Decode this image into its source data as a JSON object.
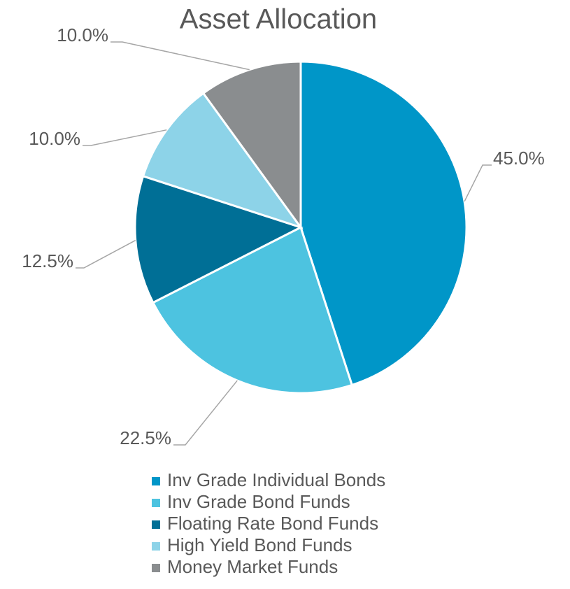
{
  "chart_data": {
    "type": "pie",
    "title": "Asset Allocation",
    "categories": [
      "Inv Grade Individual Bonds",
      "Inv Grade Bond Funds",
      "Floating Rate Bond Funds",
      "High Yield Bond Funds",
      "Money Market Funds"
    ],
    "values": [
      45,
      22.5,
      12.5,
      10,
      10
    ],
    "value_labels": [
      "45.0%",
      "22.5%",
      "12.5%",
      "10.0%",
      "10.0%"
    ],
    "colors": [
      "#0096c8",
      "#4dc3e0",
      "#006f96",
      "#8dd3e8",
      "#8a8d8f"
    ],
    "legend": "bottom"
  }
}
